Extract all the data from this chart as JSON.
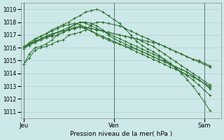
{
  "title": "",
  "xlabel": "Pression niveau de la mer( hPa )",
  "ylim": [
    1010.5,
    1019.5
  ],
  "yticks": [
    1011,
    1012,
    1013,
    1014,
    1015,
    1016,
    1017,
    1018,
    1019
  ],
  "background_color": "#cde8e8",
  "grid_color": "#aacccc",
  "line_color": "#2d6e2d",
  "marker": "+",
  "day_labels": [
    "Jeu",
    "Ven",
    "Sam"
  ],
  "day_positions": [
    0,
    16,
    32
  ],
  "xlim": [
    -0.5,
    35
  ],
  "series": [
    [
      1014.7,
      1015.2,
      1015.8,
      1016.0,
      1016.1,
      1016.3,
      1016.5,
      1016.6,
      1017.0,
      1017.1,
      1017.2,
      1017.4,
      1017.8,
      1018.0,
      1018.0,
      1017.9,
      1017.8,
      1017.7,
      1017.5,
      1017.3,
      1017.1,
      1016.9,
      1016.7,
      1016.5,
      1016.3,
      1016.1,
      1015.9,
      1015.7,
      1015.5,
      1015.3,
      1015.1,
      1015.0,
      1014.8,
      1014.6
    ],
    [
      1014.7,
      1015.5,
      1016.0,
      1016.1,
      1016.3,
      1016.6,
      1017.0,
      1017.2,
      1017.5,
      1017.8,
      1018.0,
      1018.0,
      1017.9,
      1017.7,
      1017.4,
      1017.0,
      1016.7,
      1016.5,
      1016.3,
      1016.1,
      1015.9,
      1015.7,
      1015.5,
      1015.3,
      1015.1,
      1014.9,
      1014.7,
      1014.5,
      1014.3,
      1014.1,
      1013.8,
      1013.5,
      1013.2,
      1012.8
    ],
    [
      1016.1,
      1016.3,
      1016.5,
      1016.6,
      1016.8,
      1016.9,
      1017.0,
      1017.2,
      1017.4,
      1017.6,
      1017.7,
      1017.5,
      1017.3,
      1017.0,
      1016.8,
      1016.6,
      1016.4,
      1016.3,
      1016.1,
      1016.0,
      1015.9,
      1015.7,
      1015.5,
      1015.3,
      1015.1,
      1014.9,
      1014.7,
      1014.5,
      1014.3,
      1014.1,
      1013.8,
      1013.5,
      1013.2,
      1012.9
    ],
    [
      1016.0,
      1016.4,
      1016.7,
      1016.9,
      1017.1,
      1017.4,
      1017.6,
      1017.8,
      1018.0,
      1018.3,
      1018.5,
      1018.8,
      1018.9,
      1019.0,
      1018.8,
      1018.5,
      1018.2,
      1017.9,
      1017.5,
      1017.0,
      1016.5,
      1016.2,
      1015.9,
      1015.7,
      1015.4,
      1015.1,
      1014.8,
      1014.4,
      1014.0,
      1013.5,
      1013.0,
      1012.4,
      1011.8,
      1011.1
    ],
    [
      1016.1,
      1016.3,
      1016.6,
      1016.9,
      1017.1,
      1017.3,
      1017.5,
      1017.7,
      1017.8,
      1017.9,
      1017.8,
      1017.6,
      1017.5,
      1017.4,
      1017.3,
      1017.2,
      1017.1,
      1017.0,
      1016.9,
      1016.8,
      1016.7,
      1016.5,
      1016.3,
      1016.1,
      1015.8,
      1015.5,
      1015.2,
      1014.9,
      1014.6,
      1014.3,
      1014.0,
      1013.7,
      1013.4,
      1013.1
    ],
    [
      1016.0,
      1016.3,
      1016.5,
      1016.7,
      1016.9,
      1017.0,
      1017.2,
      1017.3,
      1017.4,
      1017.5,
      1017.6,
      1017.5,
      1017.3,
      1017.1,
      1016.9,
      1016.7,
      1016.5,
      1016.3,
      1016.1,
      1015.9,
      1015.7,
      1015.5,
      1015.3,
      1015.1,
      1014.9,
      1014.7,
      1014.5,
      1014.3,
      1014.1,
      1013.9,
      1013.7,
      1013.5,
      1013.2,
      1013.0
    ],
    [
      1016.0,
      1016.2,
      1016.5,
      1016.7,
      1016.9,
      1017.1,
      1017.2,
      1017.3,
      1017.4,
      1017.5,
      1017.6,
      1017.6,
      1017.5,
      1017.4,
      1017.3,
      1017.2,
      1017.1,
      1017.0,
      1016.9,
      1016.8,
      1016.7,
      1016.6,
      1016.5,
      1016.4,
      1016.3,
      1016.1,
      1015.9,
      1015.7,
      1015.5,
      1015.3,
      1015.1,
      1014.9,
      1014.7,
      1014.5
    ],
    [
      1015.9,
      1016.2,
      1016.4,
      1016.6,
      1016.8,
      1017.0,
      1017.2,
      1017.4,
      1017.6,
      1017.8,
      1018.0,
      1017.9,
      1017.7,
      1017.5,
      1017.3,
      1017.1,
      1016.9,
      1016.7,
      1016.5,
      1016.3,
      1016.1,
      1015.9,
      1015.7,
      1015.5,
      1015.3,
      1015.0,
      1014.7,
      1014.4,
      1014.1,
      1013.8,
      1013.5,
      1013.1,
      1012.7,
      1012.3
    ]
  ]
}
